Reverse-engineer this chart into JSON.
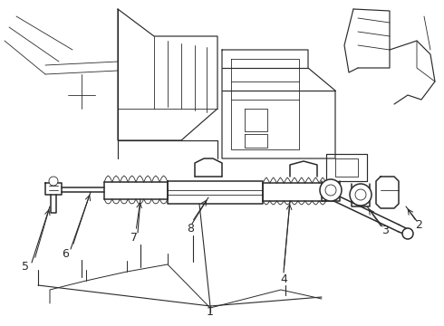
{
  "background_color": "#ffffff",
  "line_color": "#2a2a2a",
  "fig_width": 4.9,
  "fig_height": 3.6,
  "dpi": 100,
  "label_fontsize": 9,
  "lw_main": 1.1,
  "lw_thin": 0.6,
  "lw_med": 0.85
}
